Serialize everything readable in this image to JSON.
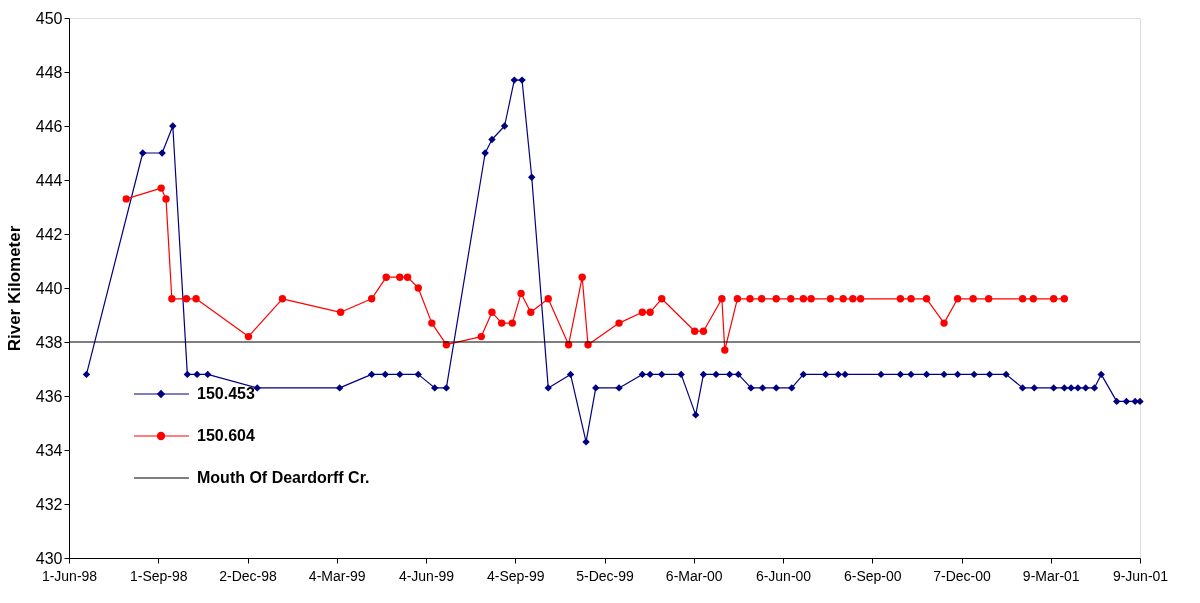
{
  "chart_data": {
    "type": "line",
    "ylabel": "River Kilometer",
    "xlim": [
      "1998-06-01",
      "2001-06-09"
    ],
    "xticks": [
      {
        "value": "1998-06-01",
        "label": "1-Jun-98"
      },
      {
        "value": "1998-09-01",
        "label": "1-Sep-98"
      },
      {
        "value": "1998-12-02",
        "label": "2-Dec-98"
      },
      {
        "value": "1999-03-04",
        "label": "4-Mar-99"
      },
      {
        "value": "1999-06-04",
        "label": "4-Jun-99"
      },
      {
        "value": "1999-09-04",
        "label": "4-Sep-99"
      },
      {
        "value": "1999-12-05",
        "label": "5-Dec-99"
      },
      {
        "value": "2000-03-06",
        "label": "6-Mar-00"
      },
      {
        "value": "2000-06-06",
        "label": "6-Jun-00"
      },
      {
        "value": "2000-09-06",
        "label": "6-Sep-00"
      },
      {
        "value": "2000-12-07",
        "label": "7-Dec-00"
      },
      {
        "value": "2001-03-09",
        "label": "9-Mar-01"
      },
      {
        "value": "2001-06-09",
        "label": "9-Jun-01"
      }
    ],
    "ylim": [
      430,
      450
    ],
    "yticks": [
      430,
      432,
      434,
      436,
      438,
      440,
      442,
      444,
      446,
      448,
      450
    ],
    "grid": false,
    "legend": "bottom left",
    "line_style": "solid",
    "series": [
      {
        "name": "150.453",
        "color": "#000080",
        "marker": "diamond",
        "x": [
          "1998-06-19",
          "1998-08-16",
          "1998-09-05",
          "1998-09-16",
          "1998-10-01",
          "1998-10-11",
          "1998-10-22",
          "1998-12-12",
          "1999-03-07",
          "1999-04-09",
          "1999-04-23",
          "1999-05-08",
          "1999-05-27",
          "1999-06-13",
          "1999-06-25",
          "1999-08-04",
          "1999-08-11",
          "1999-08-24",
          "1999-09-03",
          "1999-09-11",
          "1999-09-21",
          "1999-10-08",
          "1999-10-31",
          "1999-11-16",
          "1999-11-26",
          "1999-12-20",
          "2000-01-13",
          "2000-01-21",
          "2000-02-02",
          "2000-02-22",
          "2000-03-08",
          "2000-03-16",
          "2000-03-29",
          "2000-04-12",
          "2000-04-21",
          "2000-05-04",
          "2000-05-16",
          "2000-05-30",
          "2000-06-15",
          "2000-06-27",
          "2000-07-20",
          "2000-08-02",
          "2000-08-09",
          "2000-09-15",
          "2000-10-05",
          "2000-10-16",
          "2000-11-01",
          "2000-11-19",
          "2000-12-03",
          "2000-12-20",
          "2001-01-05",
          "2001-01-22",
          "2001-02-08",
          "2001-02-20",
          "2001-03-12",
          "2001-03-23",
          "2001-03-30",
          "2001-04-06",
          "2001-04-14",
          "2001-04-23",
          "2001-04-30",
          "2001-05-16",
          "2001-05-26",
          "2001-06-04",
          "2001-06-09"
        ],
        "values": [
          436.8,
          445,
          445,
          446,
          436.8,
          436.8,
          436.8,
          436.3,
          436.3,
          436.8,
          436.8,
          436.8,
          436.8,
          436.3,
          436.3,
          445,
          445.5,
          446,
          447.7,
          447.7,
          444.1,
          436.3,
          436.8,
          434.3,
          436.3,
          436.3,
          436.8,
          436.8,
          436.8,
          436.8,
          435.3,
          436.8,
          436.8,
          436.8,
          436.8,
          436.3,
          436.3,
          436.3,
          436.3,
          436.8,
          436.8,
          436.8,
          436.8,
          436.8,
          436.8,
          436.8,
          436.8,
          436.8,
          436.8,
          436.8,
          436.8,
          436.8,
          436.3,
          436.3,
          436.3,
          436.3,
          436.3,
          436.3,
          436.3,
          436.3,
          436.8,
          435.8,
          435.8,
          435.8,
          435.8
        ]
      },
      {
        "name": "150.604",
        "color": "#ff0000",
        "marker": "circle",
        "x": [
          "1998-07-30",
          "1998-09-04",
          "1998-09-09",
          "1998-09-15",
          "1998-09-30",
          "1998-10-10",
          "1998-12-03",
          "1999-01-07",
          "1999-03-08",
          "1999-04-09",
          "1999-04-24",
          "1999-05-08",
          "1999-05-16",
          "1999-05-27",
          "1999-06-10",
          "1999-06-25",
          "1999-07-31",
          "1999-08-11",
          "1999-08-21",
          "1999-09-01",
          "1999-09-10",
          "1999-09-20",
          "1999-10-08",
          "1999-10-29",
          "1999-11-12",
          "1999-11-18",
          "1999-12-20",
          "2000-01-13",
          "2000-01-21",
          "2000-02-02",
          "2000-03-07",
          "2000-03-16",
          "2000-04-04",
          "2000-04-07",
          "2000-04-20",
          "2000-05-03",
          "2000-05-15",
          "2000-05-30",
          "2000-06-14",
          "2000-06-27",
          "2000-07-05",
          "2000-07-25",
          "2000-08-07",
          "2000-08-17",
          "2000-08-25",
          "2000-10-05",
          "2000-10-16",
          "2000-11-01",
          "2000-11-19",
          "2000-12-03",
          "2000-12-19",
          "2001-01-04",
          "2001-02-08",
          "2001-02-19",
          "2001-03-12",
          "2001-03-23"
        ],
        "values": [
          443.3,
          443.7,
          443.3,
          439.6,
          439.6,
          439.6,
          438.2,
          439.6,
          439.1,
          439.6,
          440.4,
          440.4,
          440.4,
          440.0,
          438.7,
          437.9,
          438.2,
          439.1,
          438.7,
          438.7,
          439.8,
          439.1,
          439.6,
          437.9,
          440.4,
          437.9,
          438.7,
          439.1,
          439.1,
          439.6,
          438.4,
          438.4,
          439.6,
          437.7,
          439.6,
          439.6,
          439.6,
          439.6,
          439.6,
          439.6,
          439.6,
          439.6,
          439.6,
          439.6,
          439.6,
          439.6,
          439.6,
          439.6,
          438.7,
          439.6,
          439.6,
          439.6,
          439.6,
          439.6,
          439.6,
          439.6
        ]
      }
    ],
    "ref_lines": [
      {
        "axis": "y",
        "value": 438,
        "label": "Mouth Of Deardorff Cr.",
        "color": "#000000"
      }
    ]
  }
}
